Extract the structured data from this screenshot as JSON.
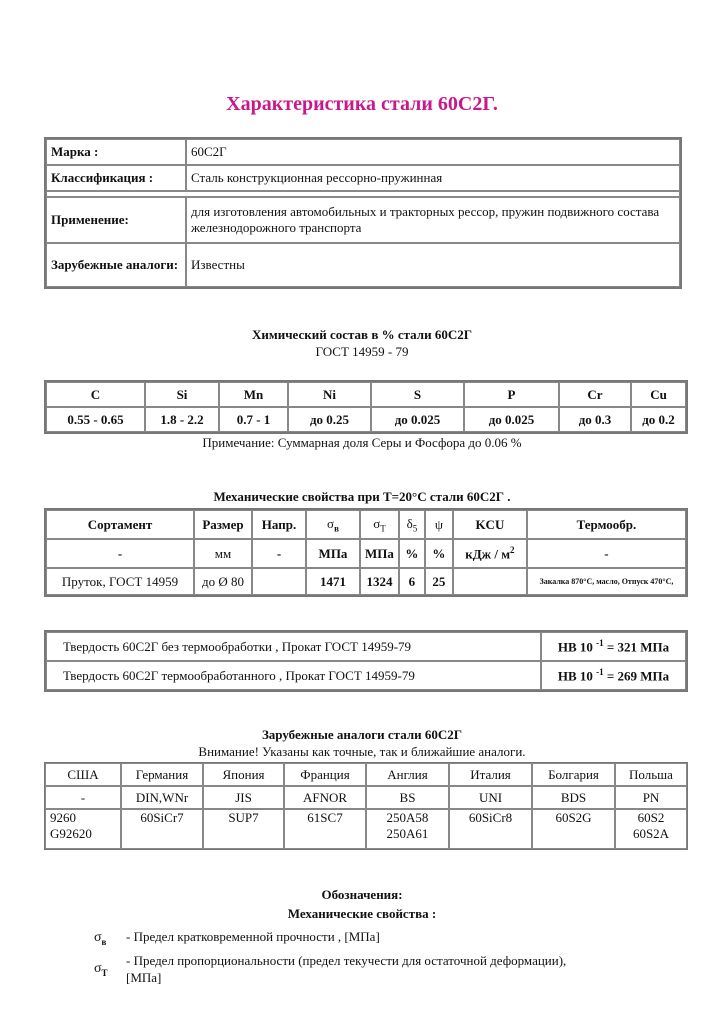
{
  "title": "Характеристика стали 60С2Г.",
  "info": {
    "rows": [
      {
        "label": "Марка :",
        "value": "60С2Г"
      },
      {
        "label": "Классификация :",
        "value": "Сталь конструкционная рессорно-пружинная"
      },
      {
        "label": "Применение:",
        "value": "для изготовления автомобильных и тракторных рессор, пружин подвижного состава железнодорожного транспорта"
      },
      {
        "label": "Зарубежные аналоги:",
        "value": "Известны"
      }
    ]
  },
  "chem": {
    "heading": "Химический состав в % стали   60С2Г",
    "standard": "ГОСТ   14959 - 79",
    "headers": [
      "C",
      "Si",
      "Mn",
      "Ni",
      "S",
      "P",
      "Cr",
      "Cu"
    ],
    "values": [
      "0.55 - 0.65",
      "1.8 - 2.2",
      "0.7 - 1",
      "до   0.25",
      "до   0.025",
      "до   0.025",
      "до   0.3",
      "до   0.2"
    ],
    "note": "Примечание: Суммарная доля Серы и Фосфора до 0.06 %"
  },
  "mech": {
    "heading": "Механические свойства при Т=20°C стали 60С2Г .",
    "headers": [
      "Сортамент",
      "Размер",
      "Напр.",
      "σ",
      "в",
      "σ",
      "T",
      "δ",
      "5",
      "ψ",
      "KCU",
      "Термообр."
    ],
    "units": [
      "-",
      "мм",
      "-",
      "МПа",
      "МПа",
      "%",
      "%",
      "кДж / м",
      "2",
      "-"
    ],
    "row": [
      "Пруток, ГОСТ 14959",
      "до Ø 80",
      "",
      "1471",
      "1324",
      "6",
      "25",
      "",
      "Закалка 870°C, масло, Отпуск 470°C,"
    ]
  },
  "hardness": [
    {
      "text": "Твердость   60С2Г   без термообработки ,      Прокат        ГОСТ 14959-79",
      "value": "HB 10",
      "exp": "-1",
      "result": "= 321   МПа"
    },
    {
      "text": "Твердость   60С2Г   термообработанного ,      Прокат        ГОСТ 14959-79",
      "value": "HB 10",
      "exp": "-1",
      "result": "= 269   МПа"
    }
  ],
  "analogs": {
    "heading": "Зарубежные аналоги стали 60С2Г",
    "note": "Внимание!   Указаны как точные, так и ближайшие аналоги.",
    "countries": [
      "США",
      "Германия",
      "Япония",
      "Франция",
      "Англия",
      "Италия",
      "Болгария",
      "Польша"
    ],
    "standards": [
      "-",
      "DIN,WNr",
      "JIS",
      "AFNOR",
      "BS",
      "UNI",
      "BDS",
      "PN"
    ],
    "grades": [
      [
        "9260",
        "G92620"
      ],
      [
        "60SiCr7"
      ],
      [
        "SUP7"
      ],
      [
        "61SC7"
      ],
      [
        "250A58",
        "250A61"
      ],
      [
        "60SiCr8"
      ],
      [
        "60S2G"
      ],
      [
        "60S2",
        "60S2A"
      ]
    ]
  },
  "legend": {
    "heading": "Обозначения:",
    "subheading": "Механические свойства :",
    "items": [
      {
        "sym": "σ",
        "sub": "в",
        "text": "- Предел кратковременной прочности , [МПа]"
      },
      {
        "sym": "σ",
        "sub": "T",
        "text": "- Предел пропорциональности (предел текучести для остаточной деформации), [МПа]"
      }
    ]
  }
}
